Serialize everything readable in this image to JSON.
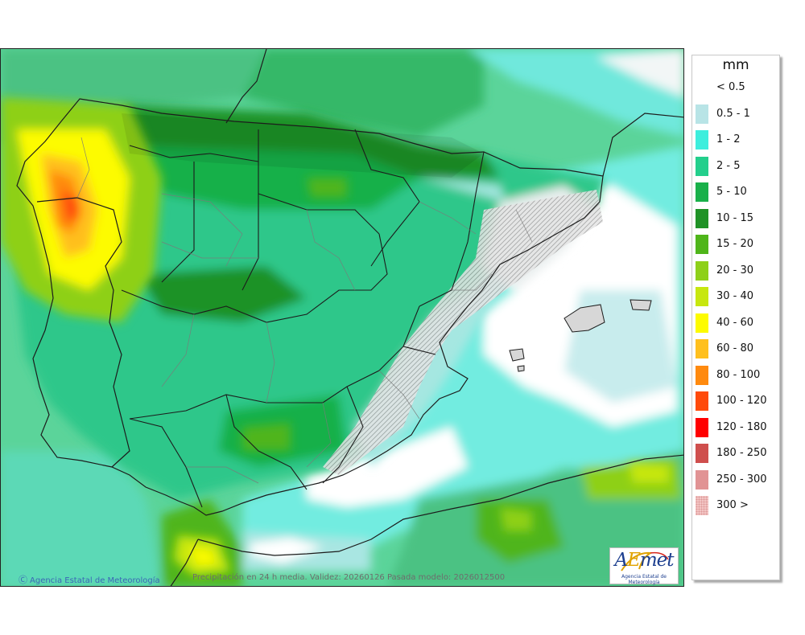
{
  "map": {
    "credit": "Agencia Estatal de Meteorología",
    "footer": "Precipitación en 24 h media. Validez: 20260126 Pasada modelo: 2026012500"
  },
  "logo": {
    "word_a": "A",
    "word_e": "E",
    "word_rest": "met",
    "subtitle": "Agencia Estatal de Meteorología"
  },
  "legend": {
    "unit": "mm",
    "items": [
      {
        "label": "< 0.5",
        "color": "#ffffff"
      },
      {
        "label": "0.5 - 1",
        "color": "#b8e4e6"
      },
      {
        "label": "1 - 2",
        "color": "#3deedd"
      },
      {
        "label": "2 - 5",
        "color": "#23cf8c"
      },
      {
        "label": "5 - 10",
        "color": "#19b04a"
      },
      {
        "label": "10 - 15",
        "color": "#1f9226"
      },
      {
        "label": "15 - 20",
        "color": "#4fb51a"
      },
      {
        "label": "20 - 30",
        "color": "#8ed019"
      },
      {
        "label": "30 - 40",
        "color": "#c7e70f"
      },
      {
        "label": "40 - 60",
        "color": "#fdfb00"
      },
      {
        "label": "60 - 80",
        "color": "#ffc01d"
      },
      {
        "label": "80 - 100",
        "color": "#ff8a0e"
      },
      {
        "label": "100 - 120",
        "color": "#ff4a0a"
      },
      {
        "label": "120 - 180",
        "color": "#ff0000"
      },
      {
        "label": "180 - 250",
        "color": "#cf4f4d"
      },
      {
        "label": "250 - 300",
        "color": "#e19394"
      },
      {
        "label": "300 >",
        "color": "#f3c5c4"
      }
    ]
  }
}
